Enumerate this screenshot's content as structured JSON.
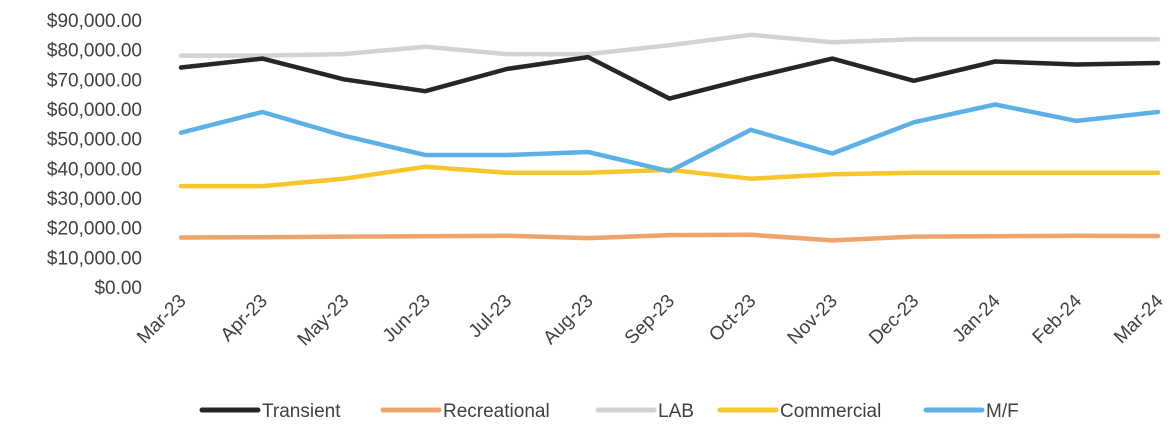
{
  "chart_data": {
    "type": "line",
    "title": "",
    "xlabel": "",
    "ylabel": "",
    "categories": [
      "Mar-23",
      "Apr-23",
      "May-23",
      "Jun-23",
      "Jul-23",
      "Aug-23",
      "Sep-23",
      "Oct-23",
      "Nov-23",
      "Dec-23",
      "Jan-24",
      "Feb-24",
      "Mar-24"
    ],
    "ylim": [
      0,
      90000
    ],
    "yticks": [
      0,
      10000,
      20000,
      30000,
      40000,
      50000,
      60000,
      70000,
      80000,
      90000
    ],
    "ytick_labels": [
      "$0.00",
      "$10,000.00",
      "$20,000.00",
      "$30,000.00",
      "$40,000.00",
      "$50,000.00",
      "$60,000.00",
      "$70,000.00",
      "$80,000.00",
      "$90,000.00"
    ],
    "grid": false,
    "legend_position": "bottom",
    "series": [
      {
        "name": "Transient",
        "color": "#262626",
        "values": [
          74000,
          77000,
          70000,
          66000,
          73500,
          77500,
          63500,
          70500,
          77000,
          69500,
          76000,
          75000,
          75500
        ]
      },
      {
        "name": "Recreational",
        "color": "#F0A46C",
        "values": [
          16700,
          16800,
          17000,
          17100,
          17300,
          16500,
          17500,
          17600,
          15700,
          17000,
          17100,
          17300,
          17200
        ]
      },
      {
        "name": "LAB",
        "color": "#D3D3D3",
        "values": [
          78000,
          78000,
          78500,
          81000,
          78500,
          78500,
          81500,
          85000,
          82500,
          83500,
          83500,
          83500,
          83500
        ]
      },
      {
        "name": "Commercial",
        "color": "#F6C62C",
        "values": [
          34000,
          34000,
          36500,
          40500,
          38500,
          38500,
          39500,
          36500,
          38000,
          38500,
          38500,
          38500,
          38500
        ]
      },
      {
        "name": "M/F",
        "color": "#5BB1E6",
        "values": [
          52000,
          59000,
          51000,
          44500,
          44500,
          45500,
          39000,
          53000,
          45000,
          55500,
          61500,
          56000,
          59000
        ]
      }
    ]
  }
}
